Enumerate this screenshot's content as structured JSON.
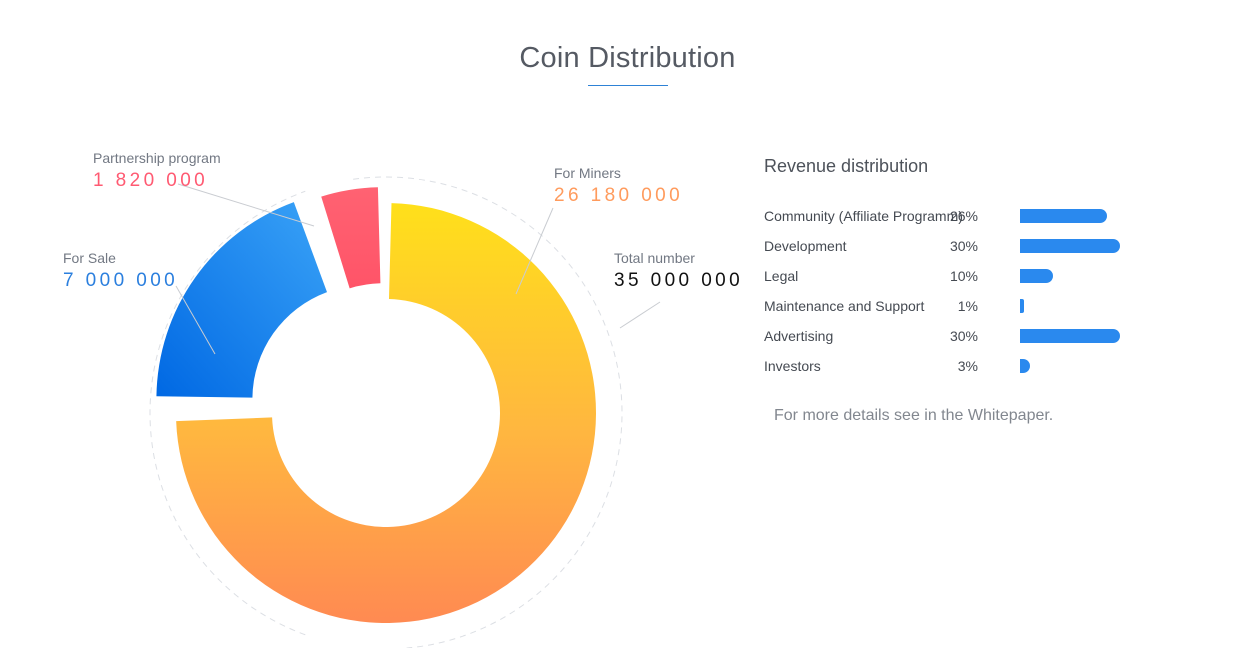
{
  "page": {
    "title": "Coin Distribution",
    "accent_color": "#2e82d6"
  },
  "chart_data": [
    {
      "type": "pie",
      "variant": "donut",
      "title": "",
      "total_label": "Total number",
      "total_value": "35 000 000",
      "total": 35000000,
      "slices": [
        {
          "label": "For Miners",
          "display_value": "26 180 000",
          "value": 26180000,
          "color_start": "#ffe01a",
          "color_end": "#ff8a52"
        },
        {
          "label": "For Sale",
          "display_value": "7 000 000",
          "value": 7000000,
          "color_start": "#3aa3f7",
          "color_end": "#0068e3"
        },
        {
          "label": "Partnership program",
          "display_value": "1 820 000",
          "value": 1820000,
          "color_start": "#ff6272",
          "color_end": "#ff5468"
        }
      ]
    },
    {
      "type": "bar",
      "orientation": "horizontal",
      "title": "Revenue distribution",
      "categories": [
        "Community (Affiliate Programm)",
        "Development",
        "Legal",
        "Maintenance and Support",
        "Advertising",
        "Investors"
      ],
      "values": [
        26,
        30,
        10,
        1,
        30,
        3
      ],
      "value_labels": [
        "26%",
        "30%",
        "10%",
        "1%",
        "30%",
        "3%"
      ],
      "unit": "%",
      "bar_color": "#2a89ee"
    }
  ],
  "revenue_note": "For more details see in the Whitepaper."
}
